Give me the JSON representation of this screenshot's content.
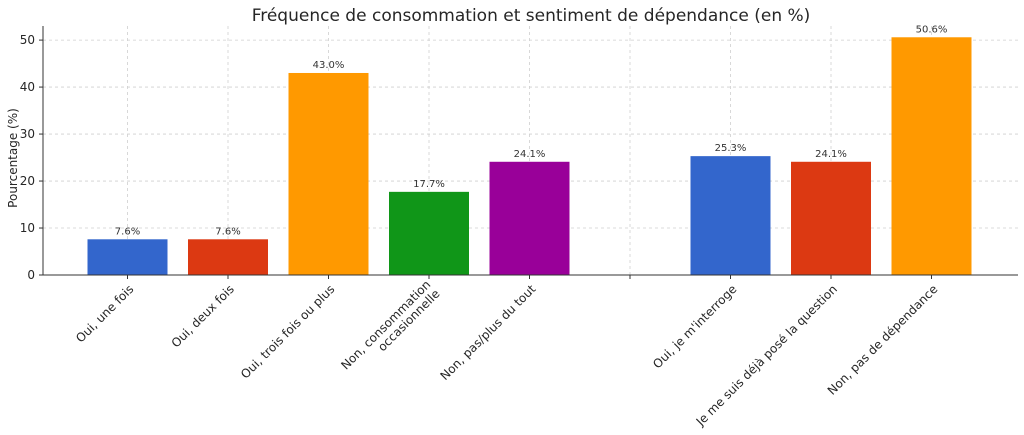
{
  "chart_data": {
    "type": "bar",
    "title": "Fréquence de consommation et sentiment de dépendance (en %)",
    "xlabel": "",
    "ylabel": "Pourcentage (%)",
    "ylim": [
      0,
      53
    ],
    "yticks": [
      0,
      10,
      20,
      30,
      40,
      50
    ],
    "grid": true,
    "categories": [
      "Oui, une fois",
      "Oui, deux fois",
      "Oui, trois fois ou plus",
      "Non, consommation\noccasionnelle",
      "Non, pas/plus du tout",
      "",
      "Oui, je m'interroge",
      "Je me suis déjà posé la question",
      "Non, pas de dépendance"
    ],
    "values": [
      7.6,
      7.6,
      43.0,
      17.7,
      24.1,
      null,
      25.3,
      24.1,
      50.6
    ],
    "value_labels": [
      "7.6%",
      "7.6%",
      "43.0%",
      "17.7%",
      "24.1%",
      "",
      "25.3%",
      "24.1%",
      "50.6%"
    ],
    "colors": [
      "#3366cc",
      "#dc3912",
      "#ff9900",
      "#109618",
      "#990099",
      "",
      "#3366cc",
      "#dc3912",
      "#ff9900"
    ]
  }
}
